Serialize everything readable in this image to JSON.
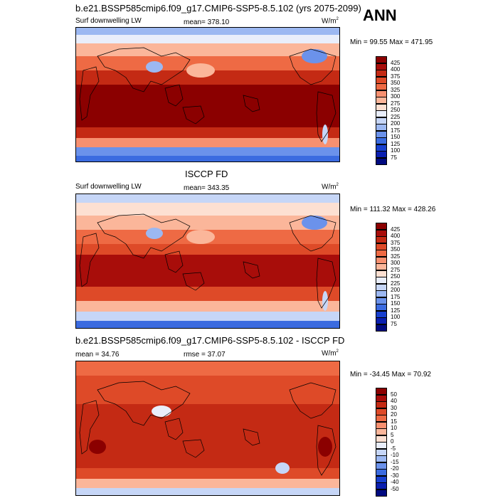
{
  "season": "ANN",
  "panels": [
    {
      "id": "model",
      "title": "b.e21.BSSP585cmip6.f09_g17.CMIP6-SSP5-8.5.102 (yrs 2075-2099)",
      "left_label": "Surf downwelling LW",
      "center_label": "mean= 378.10",
      "units": "W/m",
      "units_sup": "2",
      "minmax": "Min =  99.55 Max = 471.95",
      "levels": [
        "425",
        "400",
        "375",
        "350",
        "325",
        "300",
        "275",
        "250",
        "225",
        "200",
        "175",
        "150",
        "125",
        "100",
        "75"
      ],
      "colors": [
        "#8b0000",
        "#a80d0a",
        "#c42a14",
        "#de4a28",
        "#ee6a44",
        "#f79070",
        "#fbb69a",
        "#fde0d2",
        "#e9eefb",
        "#c6d6f7",
        "#9cb8f2",
        "#6b92eb",
        "#3b6be0",
        "#1840cf",
        "#0a1fb0",
        "#000a80"
      ]
    },
    {
      "id": "obs",
      "title": "ISCCP FD",
      "left_label": "Surf downwelling LW",
      "center_label": "mean= 343.35",
      "units": "W/m",
      "units_sup": "2",
      "minmax": "Min = 111.32 Max = 428.26",
      "levels": [
        "425",
        "400",
        "375",
        "350",
        "325",
        "300",
        "275",
        "250",
        "225",
        "200",
        "175",
        "150",
        "125",
        "100",
        "75"
      ],
      "colors": [
        "#8b0000",
        "#a80d0a",
        "#c42a14",
        "#de4a28",
        "#ee6a44",
        "#f79070",
        "#fbb69a",
        "#fde0d2",
        "#e9eefb",
        "#c6d6f7",
        "#9cb8f2",
        "#6b92eb",
        "#3b6be0",
        "#1840cf",
        "#0a1fb0",
        "#000a80"
      ]
    },
    {
      "id": "diff",
      "title": "b.e21.BSSP585cmip6.f09_g17.CMIP6-SSP5-8.5.102 - ISCCP FD",
      "left_label": "mean =  34.76",
      "center_label": "rmse =  37.07",
      "units": "W/m",
      "units_sup": "2",
      "minmax": "Min = -34.45 Max =  70.92",
      "levels": [
        "50",
        "40",
        "30",
        "20",
        "15",
        "10",
        "5",
        "0",
        "-5",
        "-10",
        "-15",
        "-20",
        "-30",
        "-40",
        "-50"
      ],
      "colors": [
        "#8b0000",
        "#a80d0a",
        "#c42a14",
        "#de4a28",
        "#ee6a44",
        "#f79070",
        "#fbb69a",
        "#fde0d2",
        "#e9eefb",
        "#c6d6f7",
        "#9cb8f2",
        "#6b92eb",
        "#3b6be0",
        "#1840cf",
        "#0a1fb0",
        "#000a80"
      ]
    }
  ]
}
